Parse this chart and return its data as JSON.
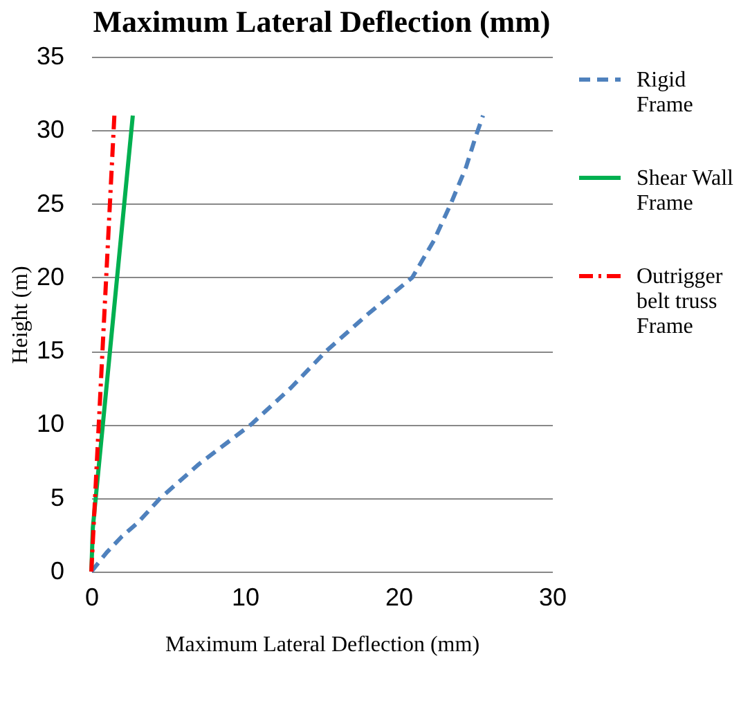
{
  "chart_data": {
    "type": "line",
    "title": "Maximum Lateral Deflection (mm)",
    "xlabel": "Maximum Lateral Deflection (mm)",
    "ylabel": "Height (m)",
    "xlim": [
      0,
      30
    ],
    "xticks": [
      0,
      10,
      20,
      30
    ],
    "ylim": [
      0,
      35
    ],
    "yticks": [
      0,
      5,
      10,
      15,
      20,
      25,
      30,
      35
    ],
    "grid": "y",
    "legend": "right",
    "series": [
      {
        "name": "Rigid Frame",
        "color": "#4f81bd",
        "line_style": "dashed",
        "x": [
          0,
          1,
          2,
          3,
          4.5,
          7,
          10.4,
          13,
          15.3,
          18,
          20.9,
          22.3,
          23.4,
          24.4,
          25,
          25.5
        ],
        "values": [
          0,
          1.3,
          2.4,
          3.3,
          5,
          7.3,
          10,
          12.5,
          15,
          17.5,
          20,
          22.5,
          25,
          27.5,
          29.5,
          31
        ]
      },
      {
        "name": "Shear Wall Frame",
        "color": "#00b050",
        "line_style": "solid",
        "x": [
          0,
          0.1,
          2.7
        ],
        "values": [
          0,
          3,
          31
        ]
      },
      {
        "name": "Outrigger belt truss Frame",
        "color": "#ff0000",
        "line_style": "dashdot",
        "x": [
          0,
          1.5
        ],
        "values": [
          0,
          31
        ]
      }
    ]
  }
}
